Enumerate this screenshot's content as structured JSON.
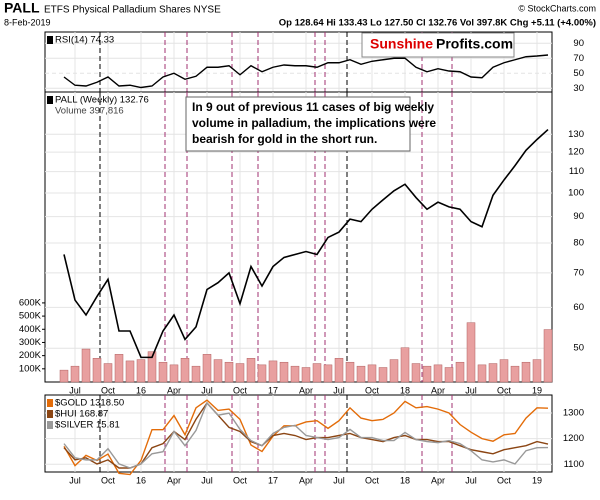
{
  "header": {
    "symbol": "PALL",
    "name": "ETFS Physical Palladium Shares NYSE",
    "credit": "© StockCharts.com",
    "date": "8-Feb-2019",
    "quote": "Op 128.64 Hi 133.43 Lo 127.50 Cl 132.76 Vol 397.8K Chg +5.11 (+4.00%)"
  },
  "logo": {
    "part1": "Sunshine",
    "part2": "Profits.com"
  },
  "annotation": [
    "In 9 out of previous 11 cases of big weekly",
    "volume in palladium, the implications were",
    "bearish for gold in the short run."
  ],
  "chart_data": [
    {
      "type": "line",
      "categories": [
        null,
        "Jul",
        null,
        null,
        "Oct",
        null,
        null,
        "16",
        null,
        null,
        "Apr",
        null,
        null,
        "Jul",
        null,
        null,
        "Oct",
        null,
        null,
        "17",
        null,
        null,
        "Apr",
        null,
        null,
        "Jul",
        null,
        null,
        "Oct",
        null,
        null,
        "18",
        null,
        null,
        "Apr",
        null,
        null,
        "Jul",
        null,
        null,
        "Oct",
        null,
        null,
        "19",
        null
      ],
      "series": [
        {
          "name": "RSI(14) 74.33",
          "color": "#000000",
          "values": [
            45,
            34,
            33,
            38,
            45,
            33,
            34,
            31,
            33,
            45,
            50,
            42,
            46,
            58,
            58,
            60,
            48,
            60,
            52,
            58,
            61,
            60,
            60,
            58,
            64,
            64,
            68,
            62,
            66,
            68,
            70,
            70,
            58,
            52,
            56,
            53,
            52,
            45,
            44,
            58,
            64,
            68,
            72,
            73,
            74.33
          ]
        }
      ],
      "ylim": [
        25,
        105
      ],
      "yticks": [
        30,
        50,
        70,
        90
      ]
    },
    {
      "type": "line",
      "categories": [
        null,
        "Jul",
        null,
        null,
        "Oct",
        null,
        null,
        "16",
        null,
        null,
        "Apr",
        null,
        null,
        "Jul",
        null,
        null,
        "Oct",
        null,
        null,
        "17",
        null,
        null,
        "Apr",
        null,
        null,
        "Jul",
        null,
        null,
        "Oct",
        null,
        null,
        "18",
        null,
        null,
        "Apr",
        null,
        null,
        "Jul",
        null,
        null,
        "Oct",
        null,
        null,
        "19",
        null
      ],
      "log_scale": true,
      "series": [
        {
          "name": "PALL (Weekly) 132.76",
          "color": "#000000",
          "values": [
            76,
            62,
            58,
            63,
            68,
            54,
            54,
            48,
            48,
            54,
            58,
            52,
            55,
            65,
            67,
            70,
            61,
            72,
            66,
            72,
            75,
            76,
            77,
            76,
            82,
            84,
            89,
            88,
            93,
            97,
            101,
            104,
            98,
            93,
            96,
            94,
            93,
            88,
            86,
            99,
            106,
            113,
            121,
            127,
            132.76
          ]
        },
        {
          "name": "Volume 397,816",
          "color": "#e8a0a0",
          "axis": "y2",
          "values": [
            90000,
            120000,
            250000,
            180000,
            140000,
            210000,
            160000,
            170000,
            230000,
            150000,
            130000,
            180000,
            120000,
            210000,
            170000,
            150000,
            140000,
            180000,
            130000,
            160000,
            150000,
            120000,
            110000,
            140000,
            130000,
            180000,
            150000,
            120000,
            130000,
            110000,
            170000,
            260000,
            140000,
            120000,
            130000,
            110000,
            150000,
            450000,
            130000,
            140000,
            170000,
            120000,
            150000,
            170000,
            397816
          ]
        }
      ],
      "ylim": [
        43,
        157
      ],
      "yticks": [
        50,
        60,
        70,
        80,
        90,
        100,
        110,
        120,
        130
      ],
      "y2lim": [
        0,
        2200000
      ],
      "y2ticks": [
        {
          "value": 100000,
          "label": "100K"
        },
        {
          "value": 200000,
          "label": "200K"
        },
        {
          "value": 300000,
          "label": "300K"
        },
        {
          "value": 400000,
          "label": "400K"
        },
        {
          "value": 500000,
          "label": "500K"
        },
        {
          "value": 600000,
          "label": "600K"
        }
      ]
    },
    {
      "type": "line",
      "categories": [
        null,
        "Jul",
        null,
        null,
        "Oct",
        null,
        null,
        "16",
        null,
        null,
        "Apr",
        null,
        null,
        "Jul",
        null,
        null,
        "Oct",
        null,
        null,
        "17",
        null,
        null,
        "Apr",
        null,
        null,
        "Jul",
        null,
        null,
        "Oct",
        null,
        null,
        "18",
        null,
        null,
        "Apr",
        null,
        null,
        "Jul",
        null,
        null,
        "Oct",
        null,
        null,
        "19",
        null
      ],
      "series": [
        {
          "name": "$GOLD 1318.50",
          "color": "#e36c09",
          "values": [
            1170,
            1095,
            1135,
            1115,
            1140,
            1065,
            1060,
            1115,
            1235,
            1235,
            1290,
            1215,
            1320,
            1350,
            1310,
            1315,
            1275,
            1175,
            1150,
            1210,
            1250,
            1250,
            1265,
            1270,
            1240,
            1270,
            1320,
            1280,
            1270,
            1275,
            1300,
            1345,
            1320,
            1325,
            1315,
            1300,
            1255,
            1225,
            1200,
            1190,
            1215,
            1220,
            1280,
            1320,
            1318.5
          ]
        },
        {
          "name": "$HUI 168.87",
          "color": "#8b4513",
          "values": [
            160,
            130,
            135,
            120,
            130,
            110,
            110,
            120,
            160,
            170,
            200,
            180,
            230,
            270,
            240,
            210,
            200,
            175,
            165,
            190,
            195,
            190,
            180,
            185,
            185,
            190,
            195,
            185,
            180,
            175,
            185,
            190,
            180,
            180,
            175,
            175,
            165,
            155,
            150,
            145,
            155,
            160,
            165,
            175,
            168.87
          ]
        },
        {
          "name": "$SILVER 15.81",
          "color": "#999999",
          "values": [
            16.2,
            14.8,
            14.6,
            14.6,
            15.7,
            14.2,
            13.8,
            14.2,
            15.2,
            15.4,
            17.4,
            16.0,
            17.5,
            20.2,
            19.0,
            19.2,
            17.6,
            16.5,
            16.0,
            17.2,
            17.8,
            18.0,
            17.0,
            16.8,
            16.6,
            16.8,
            17.6,
            16.8,
            16.8,
            16.5,
            16.5,
            17.3,
            16.6,
            16.4,
            16.3,
            16.5,
            16.2,
            15.5,
            14.6,
            14.4,
            14.6,
            14.2,
            15.5,
            15.8,
            15.81
          ]
        }
      ],
      "ylim": [
        1070,
        1370
      ],
      "yticks": [
        1100,
        1200,
        1300
      ]
    }
  ]
}
